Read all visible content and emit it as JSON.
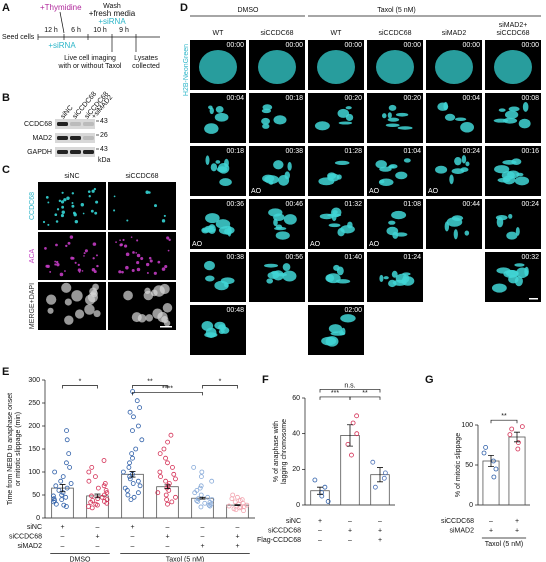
{
  "panel_labels": [
    "A",
    "B",
    "C",
    "D",
    "E",
    "F",
    "G"
  ],
  "panel_a": {
    "thymidine": "+Thymidine",
    "wash": "Wash",
    "fresh_media": "+fresh media",
    "sirna_top": "+siRNA",
    "sirna_bottom": "+siRNA",
    "durations": [
      "12 h",
      "6 h",
      "10 h",
      "9 h"
    ],
    "seed": "Seed cells",
    "imaging": [
      "Live cell imaging",
      "with or without Taxol"
    ],
    "lysates": [
      "Lysates",
      "collected"
    ]
  },
  "panel_b": {
    "lanes": [
      [
        "siNC"
      ],
      [
        "siCCDC68"
      ],
      [
        "siCCDC68",
        "+siMAD2"
      ]
    ],
    "proteins": [
      "CCDC68",
      "MAD2",
      "GAPDH"
    ],
    "markers": [
      "43",
      "26",
      "43"
    ],
    "unit": "kDa"
  },
  "panel_c": {
    "columns": [
      "siNC",
      "siCCDC68"
    ],
    "rows": [
      "CCDC68",
      "ACA",
      "MERGE+DAPI"
    ]
  },
  "panel_d": {
    "groups": [
      "DMSO",
      "Taxol (5 nM)"
    ],
    "stain": "H2B-NeonGreen",
    "columns": [
      {
        "label": [
          "WT"
        ],
        "tiles": [
          {
            "time": "00:00"
          },
          {
            "time": "00:04"
          },
          {
            "time": "00:18"
          },
          {
            "time": "00:36",
            "note": "AO"
          },
          {
            "time": "00:38"
          },
          {
            "time": "00:48"
          }
        ]
      },
      {
        "label": [
          "siCCDC68"
        ],
        "tiles": [
          {
            "time": "00:00"
          },
          {
            "time": "00:18"
          },
          {
            "time": "00:38",
            "note": "AO"
          },
          {
            "time": "00:46"
          },
          {
            "time": "00:56"
          }
        ]
      },
      {
        "label": [
          "WT"
        ],
        "tiles": [
          {
            "time": "00:00"
          },
          {
            "time": "00:20"
          },
          {
            "time": "01:28"
          },
          {
            "time": "01:32",
            "note": "AO"
          },
          {
            "time": "01:40"
          },
          {
            "time": "02:00"
          }
        ]
      },
      {
        "label": [
          "siCCDC68"
        ],
        "tiles": [
          {
            "time": "00:00"
          },
          {
            "time": "00:20"
          },
          {
            "time": "01:04",
            "note": "AO"
          },
          {
            "time": "01:08",
            "note": "AO"
          },
          {
            "time": "01:24"
          }
        ]
      },
      {
        "label": [
          "siMAD2"
        ],
        "tiles": [
          {
            "time": "00:00"
          },
          {
            "time": "00:04"
          },
          {
            "time": "00:24",
            "note": "AO"
          },
          {
            "time": "00:44"
          }
        ]
      },
      {
        "label": [
          "siMAD2+",
          "siCCDC68"
        ],
        "tiles": [
          {
            "time": "00:00"
          },
          {
            "time": "00:08"
          },
          {
            "time": "00:16"
          },
          {
            "time": "00:24"
          },
          {
            "time": "00:32"
          }
        ]
      }
    ]
  },
  "chart_data": [
    {
      "type": "bar",
      "ylabel": [
        "Time from NEBD to anaphase onset",
        "or mitotic slippage (min)"
      ],
      "categories": [
        null,
        null,
        null,
        null,
        null,
        null
      ],
      "colors": [
        "#2d5ea8",
        "#d42f55",
        "#2d5ea8",
        "#d42f55",
        "#86a9d8",
        "#f2a2ad"
      ],
      "values": [
        65,
        48,
        95,
        68,
        43,
        28
      ],
      "errors": [
        8,
        4,
        6,
        4,
        2,
        1
      ],
      "points": [
        [
          190,
          170,
          140,
          120,
          110,
          100,
          90,
          80,
          75,
          70,
          65,
          60,
          55,
          50,
          48,
          45,
          42,
          40,
          38,
          35,
          30,
          28,
          25
        ],
        [
          125,
          110,
          100,
          90,
          80,
          75,
          70,
          65,
          60,
          55,
          50,
          48,
          45,
          42,
          40,
          38,
          36,
          34,
          32,
          30,
          28,
          25,
          22
        ],
        [
          275,
          255,
          240,
          230,
          220,
          200,
          190,
          170,
          150,
          140,
          130,
          120,
          110,
          100,
          95,
          90,
          85,
          80,
          75,
          70,
          65,
          60,
          55,
          50,
          45,
          40
        ],
        [
          180,
          165,
          150,
          140,
          130,
          120,
          110,
          100,
          95,
          90,
          85,
          80,
          75,
          70,
          65,
          60,
          55,
          50,
          45,
          40,
          35,
          30
        ],
        [
          110,
          100,
          90,
          80,
          70,
          65,
          60,
          55,
          50,
          45,
          42,
          40,
          38,
          36,
          34,
          32,
          30,
          28,
          26,
          24
        ],
        [
          50,
          45,
          42,
          40,
          38,
          35,
          32,
          30,
          28,
          26,
          25,
          24,
          22,
          20,
          18,
          16
        ]
      ],
      "ylim": [
        0,
        300
      ],
      "yticks": [
        0,
        50,
        100,
        150,
        200,
        250,
        300
      ],
      "annotations": [
        "*",
        "**",
        "****",
        "*"
      ],
      "conditions": [
        {
          "name": "siNC",
          "signs": [
            "+",
            "–",
            "+",
            "–",
            "–",
            "–"
          ]
        },
        {
          "name": "siCCDC68",
          "signs": [
            "–",
            "+",
            "–",
            "+",
            "–",
            "+"
          ]
        },
        {
          "name": "siMAD2",
          "signs": [
            "–",
            "–",
            "–",
            "–",
            "+",
            "+"
          ]
        }
      ],
      "group_labels": [
        "DMSO",
        "Taxol (5 nM)"
      ]
    },
    {
      "type": "bar",
      "ylabel": [
        "% of anaphase with",
        "lagging chromosome"
      ],
      "categories": [
        null,
        null,
        null
      ],
      "colors": [
        "#2d5ea8",
        "#d42f55",
        "#4a6fb5"
      ],
      "values": [
        8,
        39,
        17
      ],
      "errors": [
        2,
        6,
        4
      ],
      "points": [
        [
          2,
          5,
          7,
          10,
          14
        ],
        [
          28,
          34,
          40,
          46,
          50
        ],
        [
          10,
          15,
          18,
          24
        ]
      ],
      "ylim": [
        0,
        60
      ],
      "yticks": [
        0,
        20,
        40,
        60
      ],
      "annotations": [
        "n.s.",
        "***",
        "**"
      ],
      "conditions": [
        {
          "name": "siNC",
          "signs": [
            "+",
            "–",
            "–"
          ]
        },
        {
          "name": "siCCDC68",
          "signs": [
            "–",
            "+",
            "+"
          ]
        },
        {
          "name": "Flag-CCDC68",
          "signs": [
            "–",
            "–",
            "+"
          ]
        }
      ],
      "group_labels": []
    },
    {
      "type": "bar",
      "ylabel": [
        "% of mitotic slippage"
      ],
      "categories": [
        null,
        null
      ],
      "colors": [
        "#2d5ea8",
        "#d42f55"
      ],
      "values": [
        55,
        85
      ],
      "errors": [
        7,
        6
      ],
      "points": [
        [
          35,
          45,
          55,
          65,
          72
        ],
        [
          70,
          78,
          88,
          95,
          98
        ]
      ],
      "ylim": [
        0,
        100
      ],
      "yticks": [
        0,
        50,
        100
      ],
      "annotations": [
        "**"
      ],
      "conditions": [
        {
          "name": "siCCDC68",
          "signs": [
            "–",
            "+"
          ]
        },
        {
          "name": "siMAD2",
          "signs": [
            "+",
            "+"
          ]
        }
      ],
      "group_labels": [
        "Taxol (5 nM)"
      ]
    }
  ]
}
